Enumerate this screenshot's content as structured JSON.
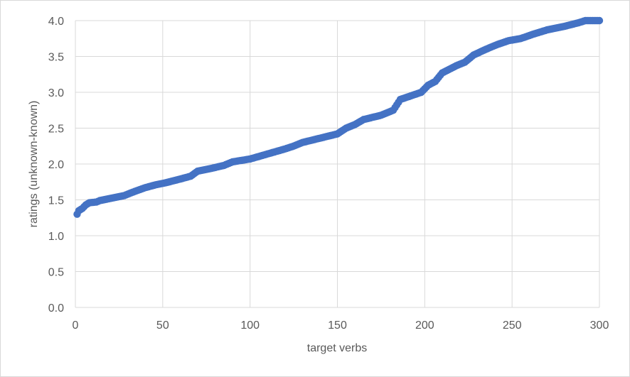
{
  "chart_data": {
    "type": "scatter",
    "title": "",
    "xlabel": "target verbs",
    "ylabel": "ratings (unknown-known)",
    "xlim": [
      0,
      300
    ],
    "ylim": [
      0,
      4
    ],
    "xticks": [
      "0",
      "50",
      "100",
      "150",
      "200",
      "250",
      "300"
    ],
    "yticks": [
      "0.0",
      "0.5",
      "1.0",
      "1.5",
      "2.0",
      "2.5",
      "3.0",
      "3.5",
      "4.0"
    ],
    "grid": true,
    "legend": "none",
    "series_color": "#4472c4",
    "series": [
      {
        "anchors": [
          [
            1,
            1.3
          ],
          [
            2,
            1.35
          ],
          [
            4,
            1.38
          ],
          [
            6,
            1.43
          ],
          [
            8,
            1.46
          ],
          [
            12,
            1.47
          ],
          [
            14,
            1.49
          ],
          [
            20,
            1.52
          ],
          [
            28,
            1.56
          ],
          [
            32,
            1.6
          ],
          [
            40,
            1.67
          ],
          [
            46,
            1.71
          ],
          [
            52,
            1.74
          ],
          [
            60,
            1.79
          ],
          [
            66,
            1.83
          ],
          [
            70,
            1.9
          ],
          [
            78,
            1.94
          ],
          [
            85,
            1.98
          ],
          [
            90,
            2.03
          ],
          [
            100,
            2.07
          ],
          [
            110,
            2.14
          ],
          [
            120,
            2.21
          ],
          [
            125,
            2.25
          ],
          [
            130,
            2.3
          ],
          [
            140,
            2.36
          ],
          [
            150,
            2.42
          ],
          [
            155,
            2.5
          ],
          [
            160,
            2.55
          ],
          [
            165,
            2.62
          ],
          [
            175,
            2.68
          ],
          [
            182,
            2.75
          ],
          [
            186,
            2.9
          ],
          [
            192,
            2.95
          ],
          [
            198,
            3.0
          ],
          [
            202,
            3.1
          ],
          [
            206,
            3.15
          ],
          [
            210,
            3.27
          ],
          [
            218,
            3.37
          ],
          [
            223,
            3.42
          ],
          [
            228,
            3.52
          ],
          [
            235,
            3.6
          ],
          [
            242,
            3.67
          ],
          [
            248,
            3.72
          ],
          [
            255,
            3.75
          ],
          [
            262,
            3.81
          ],
          [
            270,
            3.87
          ],
          [
            280,
            3.92
          ],
          [
            288,
            3.97
          ],
          [
            292,
            4.0
          ],
          [
            300,
            4.0
          ]
        ]
      }
    ]
  }
}
